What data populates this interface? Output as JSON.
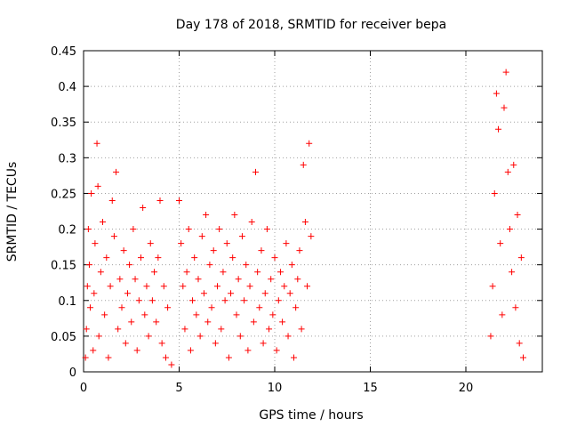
{
  "chart_data": {
    "type": "scatter",
    "title": "Day 178 of 2018, SRMTID for receiver bepa",
    "xlabel": "GPS time / hours",
    "ylabel": "SRMTID / TECUs",
    "xlim": [
      0,
      24
    ],
    "ylim": [
      0,
      0.45
    ],
    "xticks": [
      0,
      5,
      10,
      15,
      20
    ],
    "xtick_labels": [
      "0",
      "5",
      "10",
      "15",
      "20"
    ],
    "yticks": [
      0,
      0.05,
      0.1,
      0.15,
      0.2,
      0.25,
      0.3,
      0.35,
      0.4,
      0.45
    ],
    "ytick_labels": [
      "0",
      "0.05",
      "0.1",
      "0.15",
      "0.2",
      "0.25",
      "0.3",
      "0.35",
      "0.4",
      "0.45"
    ],
    "grid": true,
    "marker": "+",
    "series": [
      {
        "name": "SRMTID",
        "color": "#ff0000",
        "points": [
          [
            0.1,
            0.02
          ],
          [
            0.15,
            0.06
          ],
          [
            0.2,
            0.12
          ],
          [
            0.25,
            0.2
          ],
          [
            0.3,
            0.15
          ],
          [
            0.35,
            0.09
          ],
          [
            0.4,
            0.25
          ],
          [
            0.5,
            0.03
          ],
          [
            0.55,
            0.11
          ],
          [
            0.6,
            0.18
          ],
          [
            0.7,
            0.32
          ],
          [
            0.75,
            0.26
          ],
          [
            0.8,
            0.05
          ],
          [
            0.9,
            0.14
          ],
          [
            1.0,
            0.21
          ],
          [
            1.1,
            0.08
          ],
          [
            1.2,
            0.16
          ],
          [
            1.3,
            0.02
          ],
          [
            1.4,
            0.12
          ],
          [
            1.5,
            0.24
          ],
          [
            1.6,
            0.19
          ],
          [
            1.7,
            0.28
          ],
          [
            1.8,
            0.06
          ],
          [
            1.9,
            0.13
          ],
          [
            2.0,
            0.09
          ],
          [
            2.1,
            0.17
          ],
          [
            2.2,
            0.04
          ],
          [
            2.3,
            0.11
          ],
          [
            2.4,
            0.15
          ],
          [
            2.5,
            0.07
          ],
          [
            2.6,
            0.2
          ],
          [
            2.7,
            0.13
          ],
          [
            2.8,
            0.03
          ],
          [
            2.9,
            0.1
          ],
          [
            3.0,
            0.16
          ],
          [
            3.1,
            0.23
          ],
          [
            3.2,
            0.08
          ],
          [
            3.3,
            0.12
          ],
          [
            3.4,
            0.05
          ],
          [
            3.5,
            0.18
          ],
          [
            3.6,
            0.1
          ],
          [
            3.7,
            0.14
          ],
          [
            3.8,
            0.07
          ],
          [
            3.9,
            0.16
          ],
          [
            4.0,
            0.24
          ],
          [
            4.1,
            0.04
          ],
          [
            4.2,
            0.12
          ],
          [
            4.3,
            0.02
          ],
          [
            4.4,
            0.09
          ],
          [
            4.6,
            0.01
          ],
          [
            5.0,
            0.24
          ],
          [
            5.1,
            0.18
          ],
          [
            5.2,
            0.12
          ],
          [
            5.3,
            0.06
          ],
          [
            5.4,
            0.14
          ],
          [
            5.5,
            0.2
          ],
          [
            5.6,
            0.03
          ],
          [
            5.7,
            0.1
          ],
          [
            5.8,
            0.16
          ],
          [
            5.9,
            0.08
          ],
          [
            6.0,
            0.13
          ],
          [
            6.1,
            0.05
          ],
          [
            6.2,
            0.19
          ],
          [
            6.3,
            0.11
          ],
          [
            6.4,
            0.22
          ],
          [
            6.5,
            0.07
          ],
          [
            6.6,
            0.15
          ],
          [
            6.7,
            0.09
          ],
          [
            6.8,
            0.17
          ],
          [
            6.9,
            0.04
          ],
          [
            7.0,
            0.12
          ],
          [
            7.1,
            0.2
          ],
          [
            7.2,
            0.06
          ],
          [
            7.3,
            0.14
          ],
          [
            7.4,
            0.1
          ],
          [
            7.5,
            0.18
          ],
          [
            7.6,
            0.02
          ],
          [
            7.7,
            0.11
          ],
          [
            7.8,
            0.16
          ],
          [
            7.9,
            0.22
          ],
          [
            8.0,
            0.08
          ],
          [
            8.1,
            0.13
          ],
          [
            8.2,
            0.05
          ],
          [
            8.3,
            0.19
          ],
          [
            8.4,
            0.1
          ],
          [
            8.5,
            0.15
          ],
          [
            8.6,
            0.03
          ],
          [
            8.7,
            0.12
          ],
          [
            8.8,
            0.21
          ],
          [
            8.9,
            0.07
          ],
          [
            9.0,
            0.28
          ],
          [
            9.1,
            0.14
          ],
          [
            9.2,
            0.09
          ],
          [
            9.3,
            0.17
          ],
          [
            9.4,
            0.04
          ],
          [
            9.5,
            0.11
          ],
          [
            9.6,
            0.2
          ],
          [
            9.7,
            0.06
          ],
          [
            9.8,
            0.13
          ],
          [
            9.9,
            0.08
          ],
          [
            10.0,
            0.16
          ],
          [
            10.1,
            0.03
          ],
          [
            10.2,
            0.1
          ],
          [
            10.3,
            0.14
          ],
          [
            10.4,
            0.07
          ],
          [
            10.5,
            0.12
          ],
          [
            10.6,
            0.18
          ],
          [
            10.7,
            0.05
          ],
          [
            10.8,
            0.11
          ],
          [
            10.9,
            0.15
          ],
          [
            11.0,
            0.02
          ],
          [
            11.1,
            0.09
          ],
          [
            11.2,
            0.13
          ],
          [
            11.3,
            0.17
          ],
          [
            11.4,
            0.06
          ],
          [
            11.5,
            0.29
          ],
          [
            11.6,
            0.21
          ],
          [
            11.7,
            0.12
          ],
          [
            11.8,
            0.32
          ],
          [
            11.9,
            0.19
          ],
          [
            21.3,
            0.05
          ],
          [
            21.4,
            0.12
          ],
          [
            21.5,
            0.25
          ],
          [
            21.6,
            0.39
          ],
          [
            21.7,
            0.34
          ],
          [
            21.8,
            0.18
          ],
          [
            21.9,
            0.08
          ],
          [
            22.0,
            0.37
          ],
          [
            22.1,
            0.42
          ],
          [
            22.2,
            0.28
          ],
          [
            22.3,
            0.2
          ],
          [
            22.4,
            0.14
          ],
          [
            22.5,
            0.29
          ],
          [
            22.6,
            0.09
          ],
          [
            22.7,
            0.22
          ],
          [
            22.8,
            0.04
          ],
          [
            22.9,
            0.16
          ],
          [
            23.0,
            0.02
          ]
        ]
      }
    ]
  }
}
